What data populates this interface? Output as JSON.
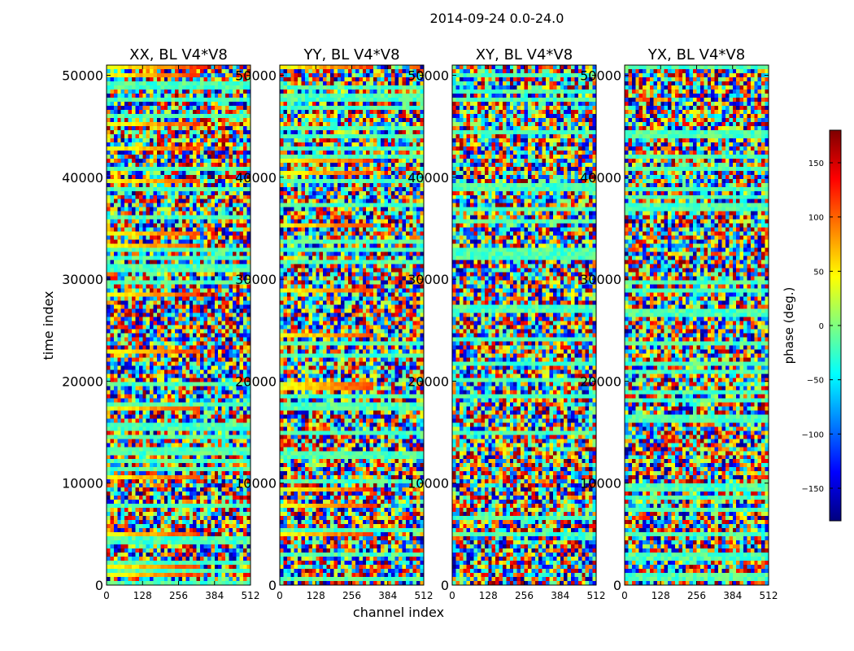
{
  "figure": {
    "suptitle": "2014-09-24 0.0-24.0"
  },
  "chart_data": {
    "type": "heatmap",
    "xlabel": "channel index",
    "ylabel": "time index",
    "xlim": [
      0,
      512
    ],
    "ylim": [
      0,
      51000
    ],
    "xticks": [
      0,
      128,
      256,
      384,
      512
    ],
    "yticks": [
      0,
      10000,
      20000,
      30000,
      40000,
      50000
    ],
    "panels": [
      {
        "title": "XX, BL V4*V8"
      },
      {
        "title": "YY, BL V4*V8"
      },
      {
        "title": "XY, BL V4*V8"
      },
      {
        "title": "YX, BL V4*V8"
      }
    ],
    "colorbar": {
      "label": "phase (deg.)",
      "range": [
        -180,
        180
      ],
      "ticks": [
        -150,
        -100,
        -50,
        0,
        50,
        100,
        150
      ],
      "tick_labels": [
        "−150",
        "−100",
        "−50",
        "0",
        "50",
        "100",
        "150"
      ],
      "colormap": "jet",
      "colors": [
        "#00007f",
        "#0000ff",
        "#007fff",
        "#00ffff",
        "#7fff7f",
        "#ffff00",
        "#ff7f00",
        "#ff0000",
        "#7f0000"
      ]
    }
  }
}
